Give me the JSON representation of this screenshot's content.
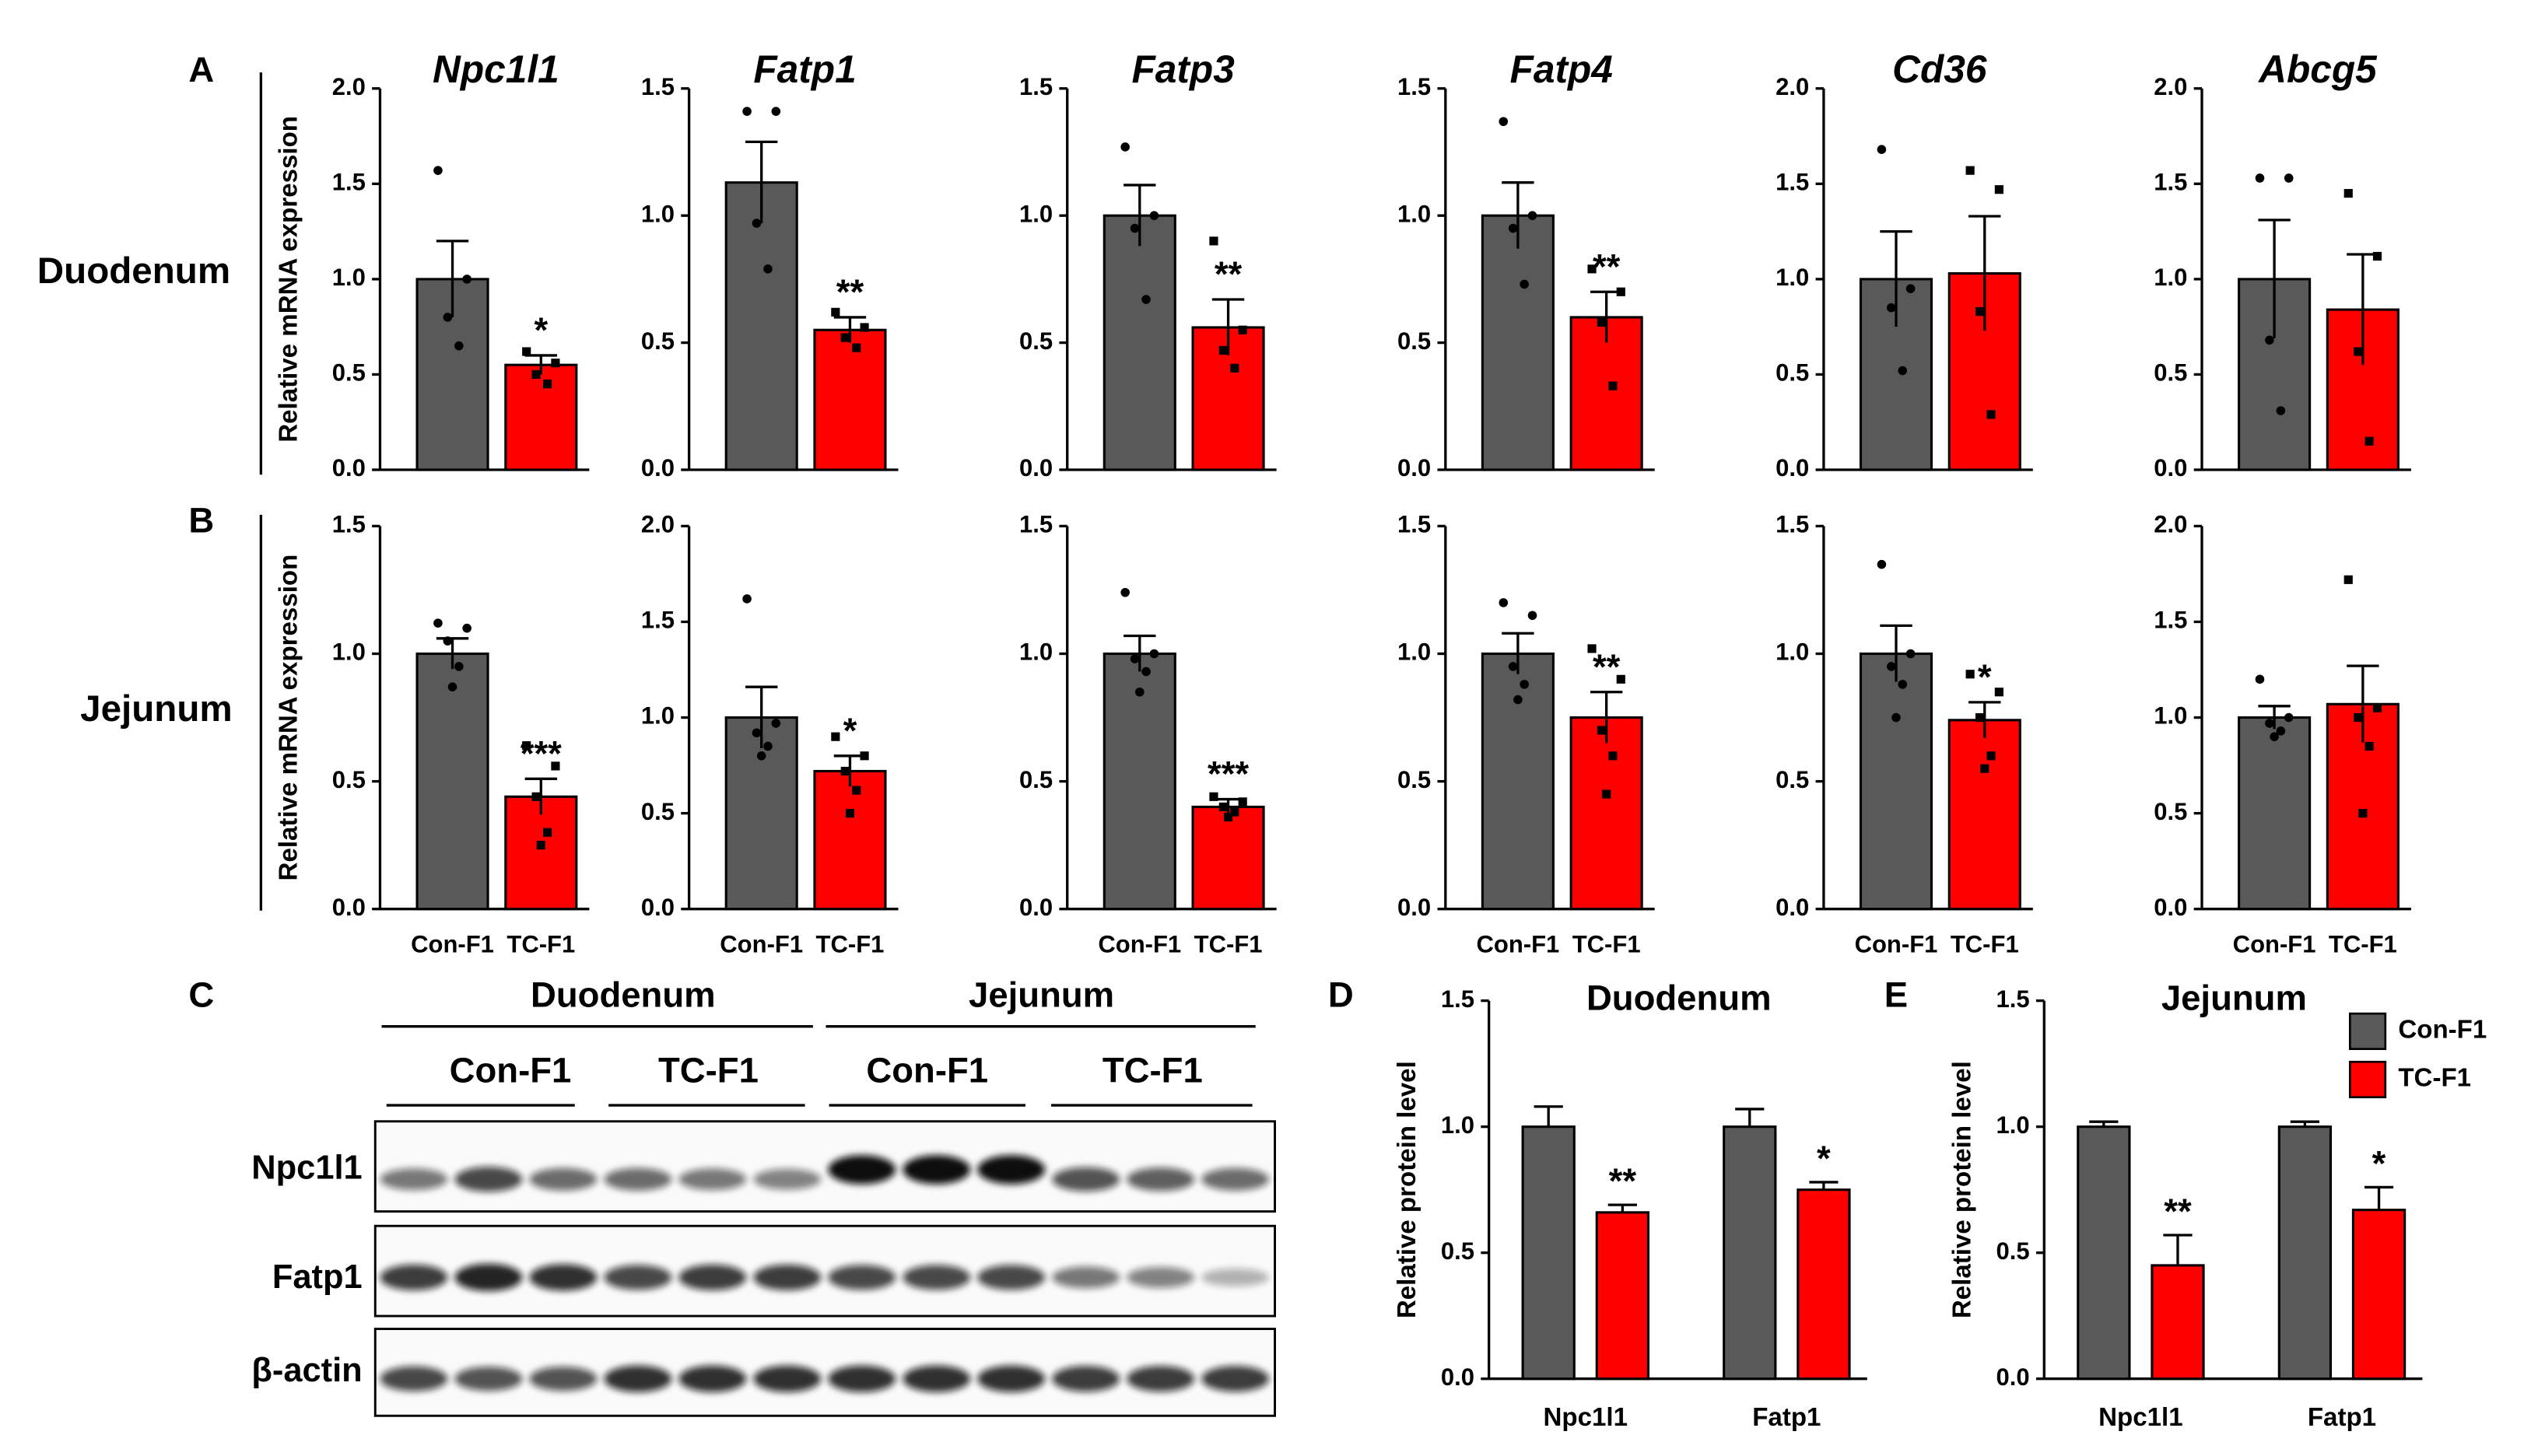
{
  "panel_labels": [
    "A",
    "B",
    "C",
    "D",
    "E"
  ],
  "row_labels": [
    "Duodenum",
    "Jejunum"
  ],
  "blot": {
    "groups": [
      "Duodenum",
      "Jejunum"
    ],
    "subgroups": [
      "Con-F1",
      "TC-F1",
      "Con-F1",
      "TC-F1"
    ],
    "rows": [
      "Npc1l1",
      "Fatp1",
      "β-actin"
    ]
  },
  "chart_data": [
    {
      "type": "bar",
      "title": "Npc1l1",
      "ylabel": "Relative mRNA expression",
      "colors": [
        "#595959",
        "#ff0000"
      ],
      "values": [
        1.0,
        0.55
      ],
      "errors": [
        0.2,
        0.05
      ],
      "points": [
        [
          1.57,
          1.0,
          0.8,
          0.65
        ],
        [
          0.62,
          0.56,
          0.5,
          0.45
        ]
      ],
      "significance": [
        null,
        "*"
      ],
      "ylim": [
        0,
        2
      ],
      "yticks": [
        {
          "value": 0,
          "label": "0.0"
        },
        {
          "value": 0.5,
          "label": "0.5"
        },
        {
          "value": 1,
          "label": "1.0"
        },
        {
          "value": 1.5,
          "label": "1.5"
        },
        {
          "value": 2,
          "label": "2.0"
        }
      ]
    },
    {
      "type": "bar",
      "title": "Fatp1",
      "colors": [
        "#595959",
        "#ff0000"
      ],
      "values": [
        1.13,
        0.55
      ],
      "errors": [
        0.16,
        0.05
      ],
      "points": [
        [
          1.41,
          1.41,
          0.97,
          0.79
        ],
        [
          0.62,
          0.56,
          0.52,
          0.48
        ]
      ],
      "significance": [
        null,
        "**"
      ],
      "ylim": [
        0,
        1.5
      ],
      "yticks": [
        {
          "value": 0,
          "label": "0.0"
        },
        {
          "value": 0.5,
          "label": "0.5"
        },
        {
          "value": 1,
          "label": "1.0"
        },
        {
          "value": 1.5,
          "label": "1.5"
        }
      ]
    },
    {
      "type": "bar",
      "title": "Fatp3",
      "colors": [
        "#595959",
        "#ff0000"
      ],
      "values": [
        1.0,
        0.56
      ],
      "errors": [
        0.12,
        0.11
      ],
      "points": [
        [
          1.27,
          1.0,
          0.95,
          0.67
        ],
        [
          0.9,
          0.55,
          0.47,
          0.4
        ]
      ],
      "significance": [
        null,
        "**"
      ],
      "ylim": [
        0,
        1.5
      ],
      "yticks": [
        {
          "value": 0,
          "label": "0.0"
        },
        {
          "value": 0.5,
          "label": "0.5"
        },
        {
          "value": 1,
          "label": "1.0"
        },
        {
          "value": 1.5,
          "label": "1.5"
        }
      ]
    },
    {
      "type": "bar",
      "title": "Fatp4",
      "colors": [
        "#595959",
        "#ff0000"
      ],
      "values": [
        1.0,
        0.6
      ],
      "errors": [
        0.13,
        0.1
      ],
      "points": [
        [
          1.37,
          1.0,
          0.95,
          0.73
        ],
        [
          0.79,
          0.7,
          0.58,
          0.33
        ]
      ],
      "significance": [
        null,
        "**"
      ],
      "ylim": [
        0,
        1.5
      ],
      "yticks": [
        {
          "value": 0,
          "label": "0.0"
        },
        {
          "value": 0.5,
          "label": "0.5"
        },
        {
          "value": 1,
          "label": "1.0"
        },
        {
          "value": 1.5,
          "label": "1.5"
        }
      ]
    },
    {
      "type": "bar",
      "title": "Cd36",
      "colors": [
        "#595959",
        "#ff0000"
      ],
      "values": [
        1.0,
        1.03
      ],
      "errors": [
        0.25,
        0.3
      ],
      "points": [
        [
          1.68,
          0.95,
          0.85,
          0.52
        ],
        [
          1.57,
          1.47,
          0.83,
          0.29
        ]
      ],
      "significance": [
        null,
        null
      ],
      "ylim": [
        0,
        2
      ],
      "yticks": [
        {
          "value": 0,
          "label": "0.0"
        },
        {
          "value": 0.5,
          "label": "0.5"
        },
        {
          "value": 1,
          "label": "1.0"
        },
        {
          "value": 1.5,
          "label": "1.5"
        },
        {
          "value": 2,
          "label": "2.0"
        }
      ]
    },
    {
      "type": "bar",
      "title": "Abcg5",
      "colors": [
        "#595959",
        "#ff0000"
      ],
      "values": [
        1.0,
        0.84
      ],
      "errors": [
        0.31,
        0.29
      ],
      "points": [
        [
          1.53,
          1.53,
          0.68,
          0.31
        ],
        [
          1.45,
          1.12,
          0.62,
          0.15
        ]
      ],
      "significance": [
        null,
        null
      ],
      "ylim": [
        0,
        2
      ],
      "yticks": [
        {
          "value": 0,
          "label": "0.0"
        },
        {
          "value": 0.5,
          "label": "0.5"
        },
        {
          "value": 1,
          "label": "1.0"
        },
        {
          "value": 1.5,
          "label": "1.5"
        },
        {
          "value": 2,
          "label": "2.0"
        }
      ]
    },
    {
      "type": "bar",
      "ylabel": "Relative mRNA expression",
      "categories": [
        "Con-F1",
        "TC-F1"
      ],
      "colors": [
        "#595959",
        "#ff0000"
      ],
      "values": [
        1.0,
        0.44
      ],
      "errors": [
        0.06,
        0.07
      ],
      "points": [
        [
          1.12,
          1.1,
          1.05,
          0.95,
          0.87
        ],
        [
          0.64,
          0.56,
          0.44,
          0.3,
          0.25
        ]
      ],
      "significance": [
        null,
        "***"
      ],
      "ylim": [
        0,
        1.5
      ],
      "yticks": [
        {
          "value": 0,
          "label": "0.0"
        },
        {
          "value": 0.5,
          "label": "0.5"
        },
        {
          "value": 1,
          "label": "1.0"
        },
        {
          "value": 1.5,
          "label": "1.5"
        }
      ]
    },
    {
      "type": "bar",
      "categories": [
        "Con-F1",
        "TC-F1"
      ],
      "colors": [
        "#595959",
        "#ff0000"
      ],
      "values": [
        1.0,
        0.72
      ],
      "errors": [
        0.16,
        0.08
      ],
      "points": [
        [
          1.62,
          0.97,
          0.92,
          0.85,
          0.8
        ],
        [
          0.9,
          0.8,
          0.72,
          0.62,
          0.5
        ]
      ],
      "significance": [
        null,
        "*"
      ],
      "ylim": [
        0,
        2
      ],
      "yticks": [
        {
          "value": 0,
          "label": "0.0"
        },
        {
          "value": 0.5,
          "label": "0.5"
        },
        {
          "value": 1,
          "label": "1.0"
        },
        {
          "value": 1.5,
          "label": "1.5"
        },
        {
          "value": 2,
          "label": "2.0"
        }
      ]
    },
    {
      "type": "bar",
      "categories": [
        "Con-F1",
        "TC-F1"
      ],
      "colors": [
        "#595959",
        "#ff0000"
      ],
      "values": [
        1.0,
        0.4
      ],
      "errors": [
        0.07,
        0.03
      ],
      "points": [
        [
          1.24,
          1.0,
          0.98,
          0.93,
          0.85
        ],
        [
          0.44,
          0.42,
          0.4,
          0.38,
          0.36
        ]
      ],
      "significance": [
        null,
        "***"
      ],
      "ylim": [
        0,
        1.5
      ],
      "yticks": [
        {
          "value": 0,
          "label": "0.0"
        },
        {
          "value": 0.5,
          "label": "0.5"
        },
        {
          "value": 1,
          "label": "1.0"
        },
        {
          "value": 1.5,
          "label": "1.5"
        }
      ]
    },
    {
      "type": "bar",
      "categories": [
        "Con-F1",
        "TC-F1"
      ],
      "colors": [
        "#595959",
        "#ff0000"
      ],
      "values": [
        1.0,
        0.75
      ],
      "errors": [
        0.08,
        0.1
      ],
      "points": [
        [
          1.2,
          1.15,
          0.95,
          0.88,
          0.82
        ],
        [
          1.02,
          0.9,
          0.7,
          0.6,
          0.45
        ]
      ],
      "significance": [
        null,
        "**"
      ],
      "ylim": [
        0,
        1.5
      ],
      "yticks": [
        {
          "value": 0,
          "label": "0.0"
        },
        {
          "value": 0.5,
          "label": "0.5"
        },
        {
          "value": 1,
          "label": "1.0"
        },
        {
          "value": 1.5,
          "label": "1.5"
        }
      ]
    },
    {
      "type": "bar",
      "categories": [
        "Con-F1",
        "TC-F1"
      ],
      "colors": [
        "#595959",
        "#ff0000"
      ],
      "values": [
        1.0,
        0.74
      ],
      "errors": [
        0.11,
        0.07
      ],
      "points": [
        [
          1.35,
          1.0,
          0.95,
          0.88,
          0.75
        ],
        [
          0.92,
          0.85,
          0.75,
          0.6,
          0.55
        ]
      ],
      "significance": [
        null,
        "*"
      ],
      "ylim": [
        0,
        1.5
      ],
      "yticks": [
        {
          "value": 0,
          "label": "0.0"
        },
        {
          "value": 0.5,
          "label": "0.5"
        },
        {
          "value": 1,
          "label": "1.0"
        },
        {
          "value": 1.5,
          "label": "1.5"
        }
      ]
    },
    {
      "type": "bar",
      "categories": [
        "Con-F1",
        "TC-F1"
      ],
      "colors": [
        "#595959",
        "#ff0000"
      ],
      "values": [
        1.0,
        1.07
      ],
      "errors": [
        0.06,
        0.2
      ],
      "points": [
        [
          1.2,
          1.0,
          0.97,
          0.93,
          0.9
        ],
        [
          1.72,
          1.05,
          1.0,
          0.85,
          0.5
        ]
      ],
      "significance": [
        null,
        null
      ],
      "ylim": [
        0,
        2
      ],
      "yticks": [
        {
          "value": 0,
          "label": "0.0"
        },
        {
          "value": 0.5,
          "label": "0.5"
        },
        {
          "value": 1,
          "label": "1.0"
        },
        {
          "value": 1.5,
          "label": "1.5"
        },
        {
          "value": 2,
          "label": "2.0"
        }
      ]
    },
    {
      "type": "grouped_bar",
      "title": "Duodenum",
      "ylabel": "Relative protein level",
      "categories": [
        "Npc1l1",
        "Fatp1"
      ],
      "series": [
        {
          "name": "Con-F1",
          "color": "#595959",
          "values": [
            1.0,
            1.0
          ],
          "errors": [
            0.08,
            0.07
          ],
          "significance": [
            null,
            null
          ]
        },
        {
          "name": "TC-F1",
          "color": "#ff0000",
          "values": [
            0.66,
            0.75
          ],
          "errors": [
            0.03,
            0.03
          ],
          "significance": [
            "**",
            "*"
          ]
        }
      ],
      "ylim": [
        0,
        1.5
      ],
      "yticks": [
        {
          "value": 0,
          "label": "0.0"
        },
        {
          "value": 0.5,
          "label": "0.5"
        },
        {
          "value": 1,
          "label": "1.0"
        },
        {
          "value": 1.5,
          "label": "1.5"
        }
      ],
      "legend": false
    },
    {
      "type": "grouped_bar",
      "title": "Jejunum",
      "ylabel": "Relative protein level",
      "categories": [
        "Npc1l1",
        "Fatp1"
      ],
      "series": [
        {
          "name": "Con-F1",
          "color": "#595959",
          "values": [
            1.0,
            1.0
          ],
          "errors": [
            0.02,
            0.02
          ],
          "significance": [
            null,
            null
          ]
        },
        {
          "name": "TC-F1",
          "color": "#ff0000",
          "values": [
            0.45,
            0.67
          ],
          "errors": [
            0.12,
            0.09
          ],
          "significance": [
            "**",
            "*"
          ]
        }
      ],
      "ylim": [
        0,
        1.5
      ],
      "yticks": [
        {
          "value": 0,
          "label": "0.0"
        },
        {
          "value": 0.5,
          "label": "0.5"
        },
        {
          "value": 1,
          "label": "1.0"
        },
        {
          "value": 1.5,
          "label": "1.5"
        }
      ],
      "legend": "upper right"
    }
  ]
}
